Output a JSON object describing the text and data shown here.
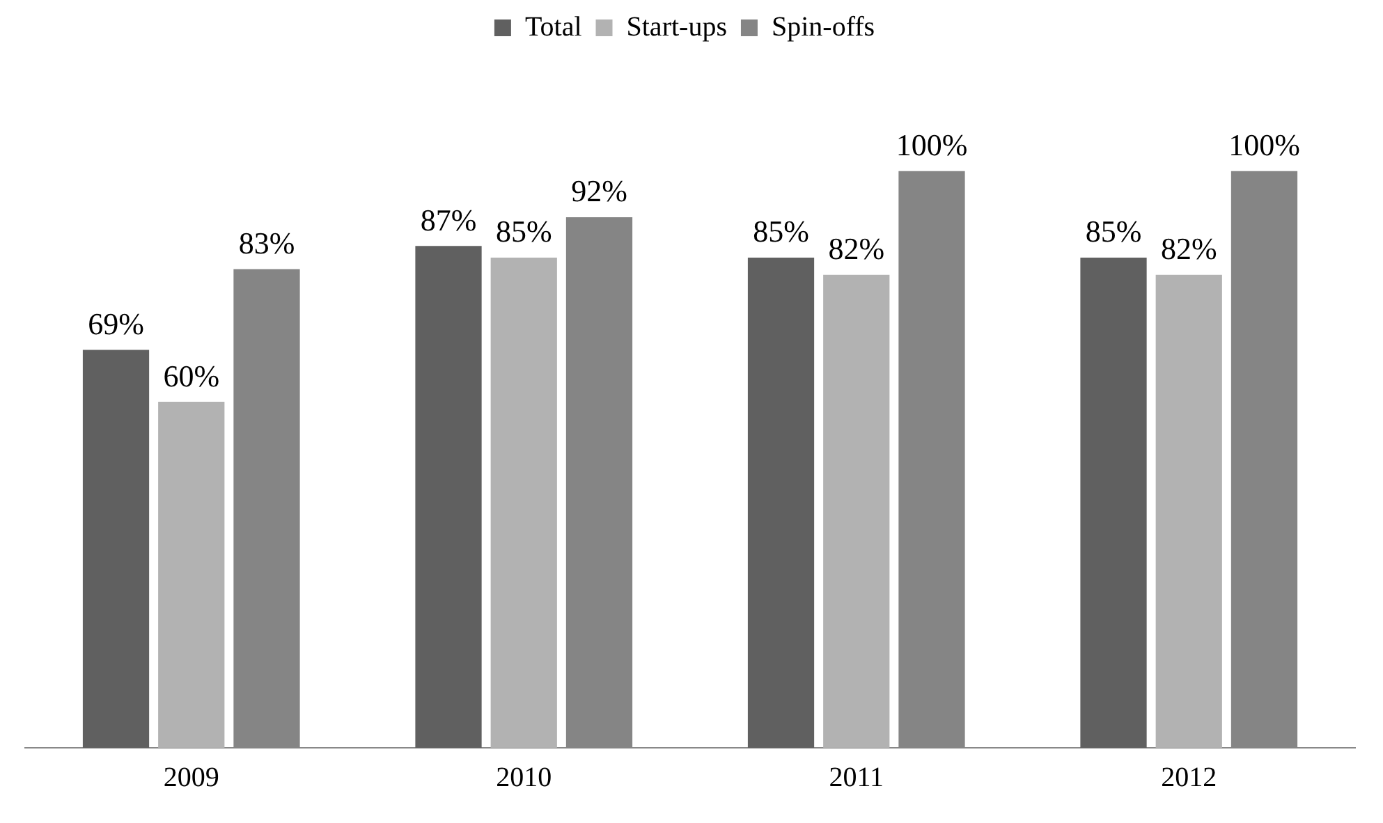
{
  "chart_data": {
    "type": "bar",
    "categories": [
      "2009",
      "2010",
      "2011",
      "2012"
    ],
    "series": [
      {
        "name": "Total",
        "color": "#606060",
        "values": [
          69,
          87,
          85,
          85
        ],
        "value_labels": [
          "69%",
          "87%",
          "85%",
          "85%"
        ]
      },
      {
        "name": "Start-ups",
        "color": "#b2b2b2",
        "values": [
          60,
          85,
          82,
          82
        ],
        "value_labels": [
          "60%",
          "85%",
          "82%",
          "82%"
        ]
      },
      {
        "name": "Spin-offs",
        "color": "#858585",
        "values": [
          83,
          92,
          100,
          100
        ],
        "value_labels": [
          "83%",
          "92%",
          "100%",
          "100%"
        ]
      }
    ],
    "legend": "top",
    "grid": false,
    "tick_labels": "x"
  }
}
